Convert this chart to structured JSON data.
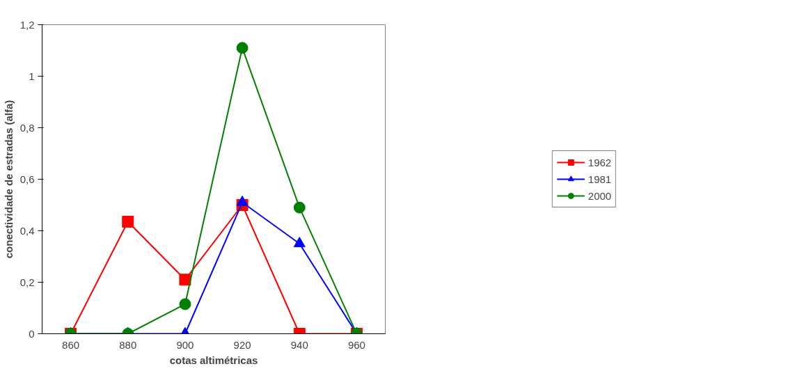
{
  "chart_data": {
    "type": "line",
    "xlabel": "cotas altimétricas",
    "ylabel": "conectividade de estradas (alfa)",
    "categories": [
      "860",
      "880",
      "900",
      "920",
      "940",
      "960"
    ],
    "ylim": [
      0,
      1.2
    ],
    "yticks": [
      0,
      {
        "value": 0.2,
        "label": "0,2"
      },
      {
        "value": 0.4,
        "label": "0,4"
      },
      {
        "value": 0.6,
        "label": "0,6"
      },
      {
        "value": 0.8,
        "label": "0,8"
      },
      1,
      {
        "value": 1.2,
        "label": "1,2"
      }
    ],
    "grid": false,
    "legend": "right",
    "series": [
      {
        "name": "1962",
        "color": "#ff0000",
        "marker": "square",
        "values": [
          0,
          0.435,
          0.21,
          0.5,
          0,
          0
        ]
      },
      {
        "name": "1981",
        "color": "#0000ff",
        "marker": "triangle",
        "values": [
          0,
          0,
          0,
          0.51,
          0.35,
          0
        ]
      },
      {
        "name": "2000",
        "color": "#008000",
        "marker": "circle",
        "values": [
          0,
          0,
          0.115,
          1.11,
          0.49,
          0
        ]
      }
    ]
  }
}
